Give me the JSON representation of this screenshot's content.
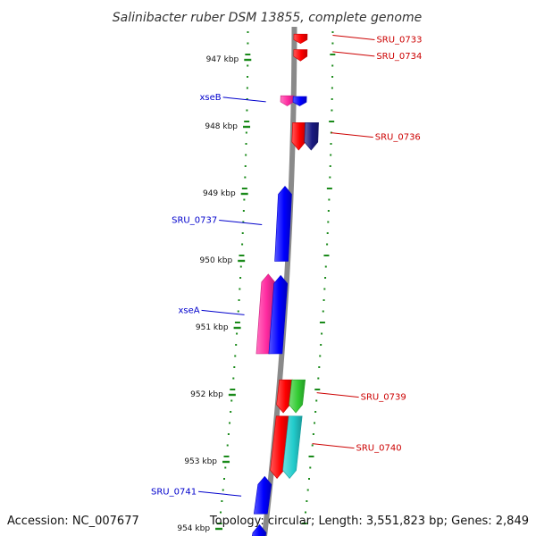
{
  "title": "Salinibacter ruber DSM 13855, complete genome",
  "footer": {
    "accession": "Accession: NC_007677",
    "summary": "Topology: circular; Length: 3,551,823 bp; Genes: 2,849"
  },
  "colors": {
    "backbone": "#8a8a8a",
    "tick": "#1a8a1a",
    "label_forward": "#cc0000",
    "label_reverse": "#0000cc",
    "red": "#ff0000",
    "blue": "#0000ff",
    "pink": "#ff2aa0",
    "green": "#33cc33",
    "cyan": "#22cccc",
    "navy": "#1a1a80"
  },
  "kbp_labels": [
    {
      "kb": 947,
      "text": "947 kbp"
    },
    {
      "kb": 948,
      "text": "948 kbp"
    },
    {
      "kb": 949,
      "text": "949 kbp"
    },
    {
      "kb": 950,
      "text": "950 kbp"
    },
    {
      "kb": 951,
      "text": "951 kbp"
    },
    {
      "kb": 952,
      "text": "952 kbp"
    },
    {
      "kb": 953,
      "text": "953 kbp"
    },
    {
      "kb": 954,
      "text": "954 kbp"
    }
  ],
  "genes": [
    {
      "id": "g0733",
      "label": "SRU_0733",
      "strand": "+",
      "color": "red",
      "lane": 1,
      "start_kb": 946.63,
      "end_kb": 946.77
    },
    {
      "id": "g0734",
      "label": "SRU_0734",
      "strand": "+",
      "color": "red",
      "lane": 1,
      "start_kb": 946.86,
      "end_kb": 947.03
    },
    {
      "id": "gxseB",
      "label": "xseB",
      "strand": "+",
      "color": "pink",
      "lane": -1,
      "start_kb": 947.55,
      "end_kb": 947.7
    },
    {
      "id": "gxseB2",
      "label": "",
      "strand": "+",
      "color": "blue",
      "lane": 1,
      "start_kb": 947.56,
      "end_kb": 947.7
    },
    {
      "id": "g0736",
      "label": "SRU_0736",
      "strand": "+",
      "color": "red",
      "lane": 1,
      "start_kb": 947.95,
      "end_kb": 948.36
    },
    {
      "id": "g0736b",
      "label": "",
      "strand": "+",
      "color": "navy",
      "lane": 2,
      "start_kb": 947.95,
      "end_kb": 948.36
    },
    {
      "id": "g0737",
      "label": "SRU_0737",
      "strand": "-",
      "color": "blue",
      "lane": -1,
      "start_kb": 948.9,
      "end_kb": 950.02
    },
    {
      "id": "gxseA",
      "label": "xseA",
      "strand": "-",
      "color": "pink",
      "lane": -2,
      "start_kb": 950.21,
      "end_kb": 951.4
    },
    {
      "id": "gxseA2",
      "label": "",
      "strand": "-",
      "color": "blue",
      "lane": -1,
      "start_kb": 950.23,
      "end_kb": 951.4
    },
    {
      "id": "g0739",
      "label": "SRU_0739",
      "strand": "+",
      "color": "red",
      "lane": 1,
      "start_kb": 951.79,
      "end_kb": 952.28
    },
    {
      "id": "g0739b",
      "label": "",
      "strand": "+",
      "color": "green",
      "lane": 2,
      "start_kb": 951.79,
      "end_kb": 952.28
    },
    {
      "id": "g0740",
      "label": "SRU_0740",
      "strand": "+",
      "color": "red",
      "lane": 1,
      "start_kb": 952.33,
      "end_kb": 953.26
    },
    {
      "id": "g0740b",
      "label": "",
      "strand": "+",
      "color": "cyan",
      "lane": 2,
      "start_kb": 952.33,
      "end_kb": 953.26
    },
    {
      "id": "g0741",
      "label": "SRU_0741",
      "strand": "-",
      "color": "blue",
      "lane": -1,
      "start_kb": 953.23,
      "end_kb": 953.79
    },
    {
      "id": "g0742",
      "label": "",
      "strand": "-",
      "color": "blue",
      "lane": -1,
      "start_kb": 953.95,
      "end_kb": 954.25
    }
  ]
}
